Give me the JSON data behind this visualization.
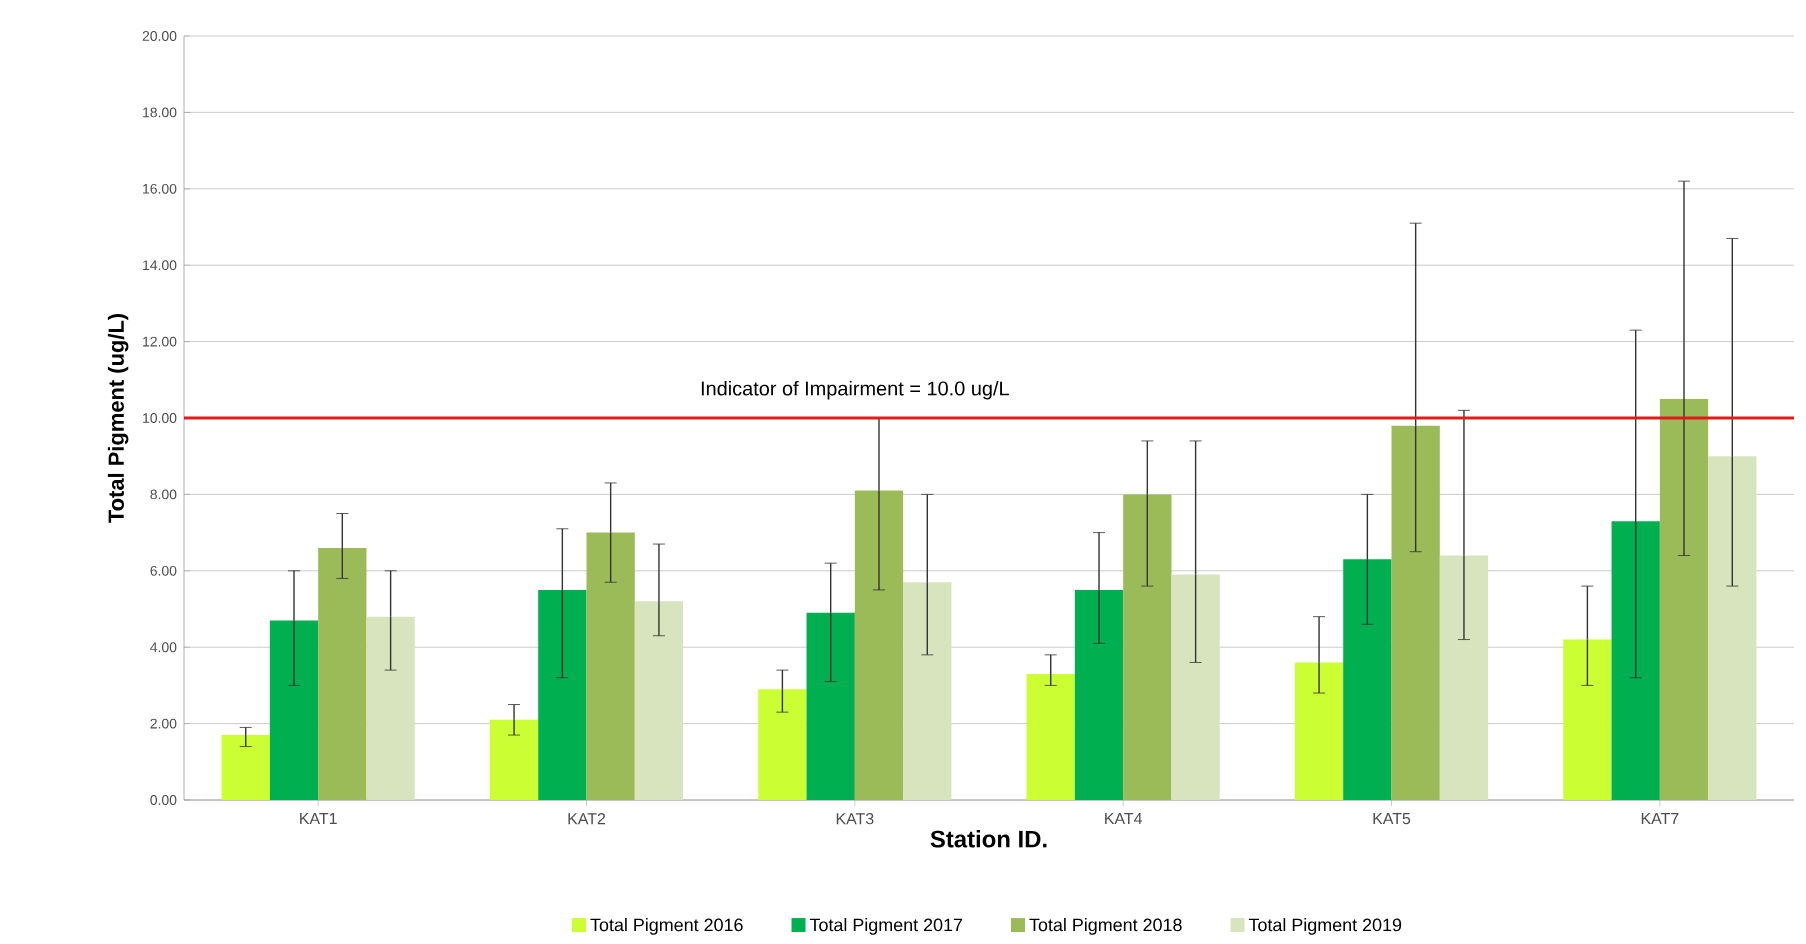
{
  "chart_data": {
    "type": "bar",
    "xlabel": "Station ID.",
    "ylabel": "Total Pigment (ug/L)",
    "categories": [
      "KAT1",
      "KAT2",
      "KAT3",
      "KAT4",
      "KAT5",
      "KAT7"
    ],
    "series": [
      {
        "name": "Total Pigment 2016",
        "color": "#ccff33",
        "values": [
          1.7,
          2.1,
          2.9,
          3.3,
          3.6,
          4.2
        ],
        "errors": [
          [
            1.4,
            1.9
          ],
          [
            1.7,
            2.5
          ],
          [
            2.3,
            3.4
          ],
          [
            3.0,
            3.8
          ],
          [
            2.8,
            4.8
          ],
          [
            3.0,
            5.6
          ]
        ]
      },
      {
        "name": "Total Pigment 2017",
        "color": "#00b050",
        "values": [
          4.7,
          5.5,
          4.9,
          5.5,
          6.3,
          7.3
        ],
        "errors": [
          [
            3.0,
            6.0
          ],
          [
            3.2,
            7.1
          ],
          [
            3.1,
            6.2
          ],
          [
            4.1,
            7.0
          ],
          [
            4.6,
            8.0
          ],
          [
            3.2,
            12.3
          ]
        ]
      },
      {
        "name": "Total Pigment 2018",
        "color": "#9bbb59",
        "values": [
          6.6,
          7.0,
          8.1,
          8.0,
          9.8,
          10.5
        ],
        "errors": [
          [
            5.8,
            7.5
          ],
          [
            5.7,
            8.3
          ],
          [
            5.5,
            10.0
          ],
          [
            5.6,
            9.4
          ],
          [
            6.5,
            15.1
          ],
          [
            6.4,
            16.2
          ]
        ]
      },
      {
        "name": "Total Pigment 2019",
        "color": "#d7e4bd",
        "values": [
          4.8,
          5.2,
          5.7,
          5.9,
          6.4,
          9.0
        ],
        "errors": [
          [
            3.4,
            6.0
          ],
          [
            4.3,
            6.7
          ],
          [
            3.8,
            8.0
          ],
          [
            3.6,
            9.4
          ],
          [
            4.2,
            10.2
          ],
          [
            5.6,
            14.7
          ]
        ]
      }
    ],
    "ylim": [
      0,
      20
    ],
    "yticks": [
      {
        "value": 0,
        "label": "0.00"
      },
      {
        "value": 2,
        "label": "2.00"
      },
      {
        "value": 4,
        "label": "4.00"
      },
      {
        "value": 6,
        "label": "6.00"
      },
      {
        "value": 8,
        "label": "8.00"
      },
      {
        "value": 10,
        "label": "10.00"
      },
      {
        "value": 12,
        "label": "12.00"
      },
      {
        "value": 14,
        "label": "14.00"
      },
      {
        "value": 16,
        "label": "16.00"
      },
      {
        "value": 18,
        "label": "18.00"
      },
      {
        "value": 20,
        "label": "20.00"
      }
    ],
    "ref_lines": [
      {
        "axis": "y",
        "value": 10,
        "label": "Indicator of Impairment = 10.0 ug/L",
        "color": "#e31a1c"
      }
    ],
    "grid": "y",
    "legend": "bottom"
  }
}
